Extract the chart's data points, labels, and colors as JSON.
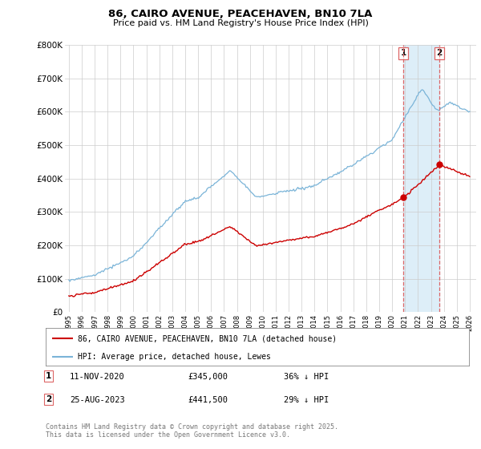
{
  "title1": "86, CAIRO AVENUE, PEACEHAVEN, BN10 7LA",
  "title2": "Price paid vs. HM Land Registry's House Price Index (HPI)",
  "ylim": [
    0,
    800000
  ],
  "ytick_labels": [
    "£0",
    "£100K",
    "£200K",
    "£300K",
    "£400K",
    "£500K",
    "£600K",
    "£700K",
    "£800K"
  ],
  "ytick_values": [
    0,
    100000,
    200000,
    300000,
    400000,
    500000,
    600000,
    700000,
    800000
  ],
  "hpi_color": "#7ab4d8",
  "hpi_shade_color": "#ddeef8",
  "price_color": "#cc0000",
  "dashed_color": "#dd6666",
  "marker1_date_num": 2020.87,
  "marker1_price": 345000,
  "marker2_date_num": 2023.65,
  "marker2_price": 441500,
  "legend_line1": "86, CAIRO AVENUE, PEACEHAVEN, BN10 7LA (detached house)",
  "legend_line2": "HPI: Average price, detached house, Lewes",
  "annotation1_date": "11-NOV-2020",
  "annotation1_price": "£345,000",
  "annotation1_hpi": "36% ↓ HPI",
  "annotation2_date": "25-AUG-2023",
  "annotation2_price": "£441,500",
  "annotation2_hpi": "29% ↓ HPI",
  "footer": "Contains HM Land Registry data © Crown copyright and database right 2025.\nThis data is licensed under the Open Government Licence v3.0.",
  "background_color": "#ffffff",
  "grid_color": "#cccccc",
  "xstart": 1995,
  "xend": 2026
}
